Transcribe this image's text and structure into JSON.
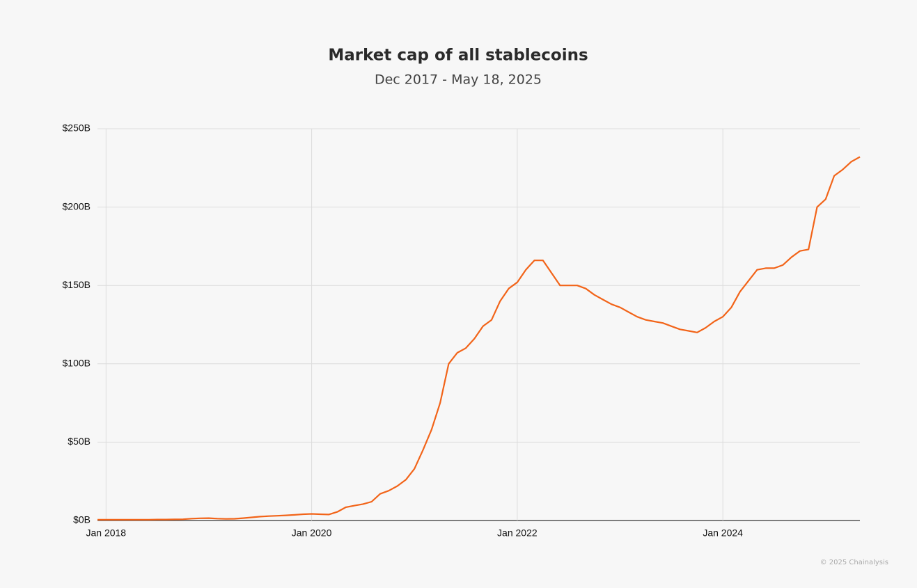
{
  "chart_data": {
    "type": "line",
    "title": "Market cap of all stablecoins",
    "subtitle": "Dec 2017 - May 18, 2025",
    "credit": "© 2025 Chainalysis",
    "color": "#f26419",
    "grid": true,
    "x": [
      "2017-12",
      "2018-01",
      "2018-02",
      "2018-03",
      "2018-04",
      "2018-05",
      "2018-06",
      "2018-07",
      "2018-08",
      "2018-09",
      "2018-10",
      "2018-11",
      "2018-12",
      "2019-01",
      "2019-02",
      "2019-03",
      "2019-04",
      "2019-05",
      "2019-06",
      "2019-07",
      "2019-08",
      "2019-09",
      "2019-10",
      "2019-11",
      "2019-12",
      "2020-01",
      "2020-02",
      "2020-03",
      "2020-04",
      "2020-05",
      "2020-06",
      "2020-07",
      "2020-08",
      "2020-09",
      "2020-10",
      "2020-11",
      "2020-12",
      "2021-01",
      "2021-02",
      "2021-03",
      "2021-04",
      "2021-05",
      "2021-06",
      "2021-07",
      "2021-08",
      "2021-09",
      "2021-10",
      "2021-11",
      "2021-12",
      "2022-01",
      "2022-02",
      "2022-03",
      "2022-04",
      "2022-05",
      "2022-06",
      "2022-07",
      "2022-08",
      "2022-09",
      "2022-10",
      "2022-11",
      "2022-12",
      "2023-01",
      "2023-02",
      "2023-03",
      "2023-04",
      "2023-05",
      "2023-06",
      "2023-07",
      "2023-08",
      "2023-09",
      "2023-10",
      "2023-11",
      "2023-12",
      "2024-01",
      "2024-02",
      "2024-03",
      "2024-04",
      "2024-05",
      "2024-06",
      "2024-07",
      "2024-08",
      "2024-09",
      "2024-10",
      "2024-11",
      "2024-12",
      "2025-01",
      "2025-02",
      "2025-03",
      "2025-04",
      "2025-05"
    ],
    "values": [
      0.5,
      0.5,
      0.5,
      0.5,
      0.5,
      0.5,
      0.5,
      0.6,
      0.6,
      0.7,
      0.8,
      1.2,
      1.4,
      1.5,
      1.2,
      1.0,
      1.1,
      1.5,
      2.0,
      2.5,
      2.8,
      3.0,
      3.3,
      3.6,
      4.0,
      4.2,
      4.0,
      3.8,
      5.5,
      8.5,
      9.5,
      10.5,
      12,
      17,
      19,
      22,
      26,
      33,
      45,
      58,
      75,
      100,
      107,
      110,
      116,
      124,
      128,
      140,
      148,
      152,
      160,
      166,
      166,
      158,
      150,
      150,
      150,
      148,
      144,
      141,
      138,
      136,
      133,
      130,
      128,
      127,
      126,
      124,
      122,
      121,
      120,
      123,
      127,
      130,
      136,
      146,
      153,
      160,
      161,
      161,
      163,
      168,
      172,
      173,
      200,
      205,
      220,
      224,
      229,
      232
    ],
    "xlim": [
      "2017-12",
      "2025-05"
    ],
    "xticks": [
      {
        "value": "2018-01",
        "label": "Jan 2018"
      },
      {
        "value": "2020-01",
        "label": "Jan 2020"
      },
      {
        "value": "2022-01",
        "label": "Jan 2022"
      },
      {
        "value": "2024-01",
        "label": "Jan 2024"
      }
    ],
    "ylim": [
      0,
      250
    ],
    "yticks": [
      {
        "value": 0,
        "label": "$0B"
      },
      {
        "value": 50,
        "label": "$50B"
      },
      {
        "value": 100,
        "label": "$100B"
      },
      {
        "value": 150,
        "label": "$150B"
      },
      {
        "value": 200,
        "label": "$200B"
      },
      {
        "value": 250,
        "label": "$250B"
      }
    ]
  }
}
